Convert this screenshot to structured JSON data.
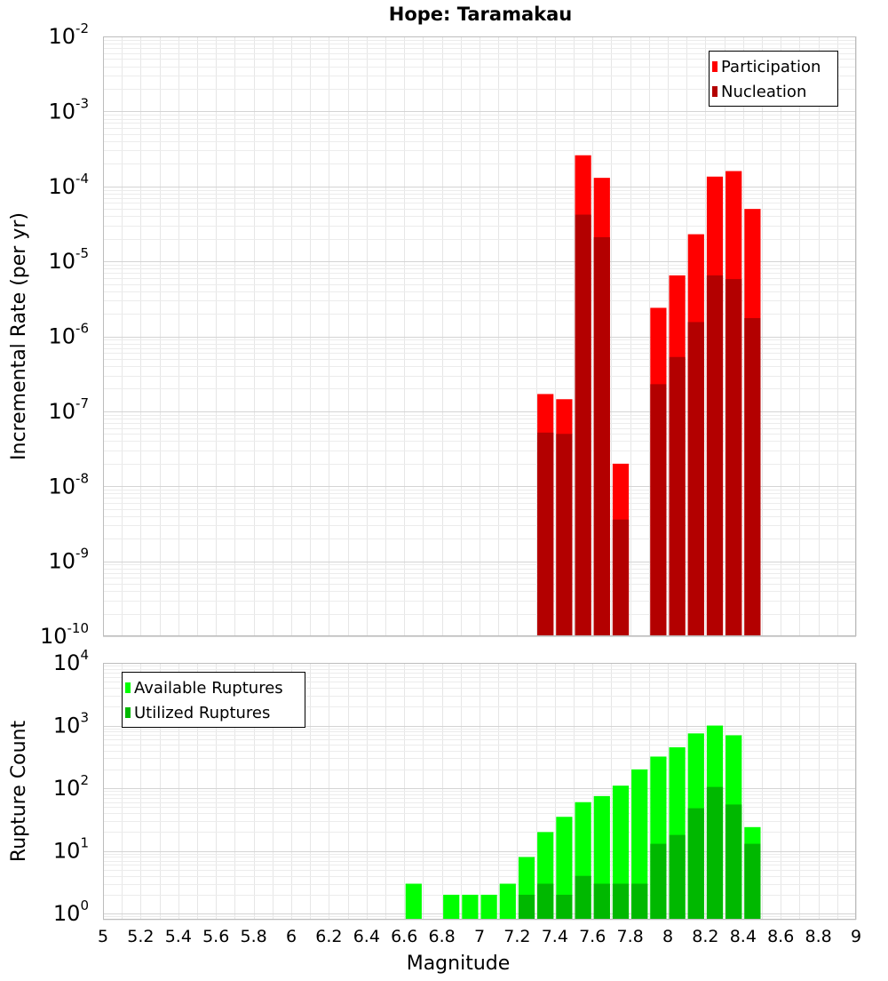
{
  "chart_data": [
    {
      "type": "bar",
      "title": "Hope: Taramakau",
      "xlabel": "",
      "ylabel": "Incremental Rate (per yr)",
      "xlim": [
        5,
        9
      ],
      "ylim": [
        1e-10,
        0.01
      ],
      "yscale": "log",
      "y_tick_exponents": [
        -10,
        -9,
        -8,
        -7,
        -6,
        -5,
        -4,
        -3,
        -2
      ],
      "grid": true,
      "legend_position": "top-right",
      "bar_width": 0.1,
      "x": [
        7.35,
        7.45,
        7.55,
        7.65,
        7.75,
        7.95,
        8.05,
        8.15,
        8.25,
        8.35,
        8.45
      ],
      "series": [
        {
          "name": "Participation",
          "color": "#ff0000",
          "values": [
            1.7e-07,
            1.45e-07,
            0.00026,
            0.00013,
            2e-08,
            2.4e-06,
            6.5e-06,
            2.3e-05,
            0.000135,
            0.00016,
            5e-05
          ]
        },
        {
          "name": "Nucleation",
          "color": "#b30000",
          "values": [
            5.2e-08,
            5e-08,
            4.2e-05,
            2.1e-05,
            3.6e-09,
            2.3e-07,
            5.3e-07,
            1.55e-06,
            6.5e-06,
            5.8e-06,
            1.75e-06
          ]
        }
      ]
    },
    {
      "type": "bar",
      "title": "",
      "xlabel": "Magnitude",
      "ylabel": "Rupture Count",
      "xlim": [
        5,
        9
      ],
      "ylim": [
        0.8,
        10000.0
      ],
      "yscale": "log",
      "y_tick_exponents": [
        0,
        1,
        2,
        3,
        4
      ],
      "x_ticks": [
        "5",
        "5.2",
        "5.4",
        "5.6",
        "5.8",
        "6",
        "6.2",
        "6.4",
        "6.6",
        "6.8",
        "7",
        "7.2",
        "7.4",
        "7.6",
        "7.8",
        "8",
        "8.2",
        "8.4",
        "8.6",
        "8.8",
        "9"
      ],
      "grid": true,
      "legend_position": "top-left",
      "bar_width": 0.1,
      "x": [
        6.65,
        6.85,
        6.95,
        7.05,
        7.15,
        7.25,
        7.35,
        7.45,
        7.55,
        7.65,
        7.75,
        7.85,
        7.95,
        8.05,
        8.15,
        8.25,
        8.35,
        8.45
      ],
      "series": [
        {
          "name": "Available Ruptures",
          "color": "#00ff00",
          "values": [
            3,
            2,
            2,
            2,
            3,
            8,
            20,
            35,
            60,
            75,
            110,
            200,
            320,
            450,
            750,
            1000,
            700,
            24
          ]
        },
        {
          "name": "Utilized Ruptures",
          "color": "#00b800",
          "values": [
            0,
            0,
            0,
            0,
            0,
            2,
            3,
            2,
            4,
            3,
            3,
            3,
            13,
            18,
            48,
            105,
            55,
            13
          ]
        }
      ]
    }
  ]
}
